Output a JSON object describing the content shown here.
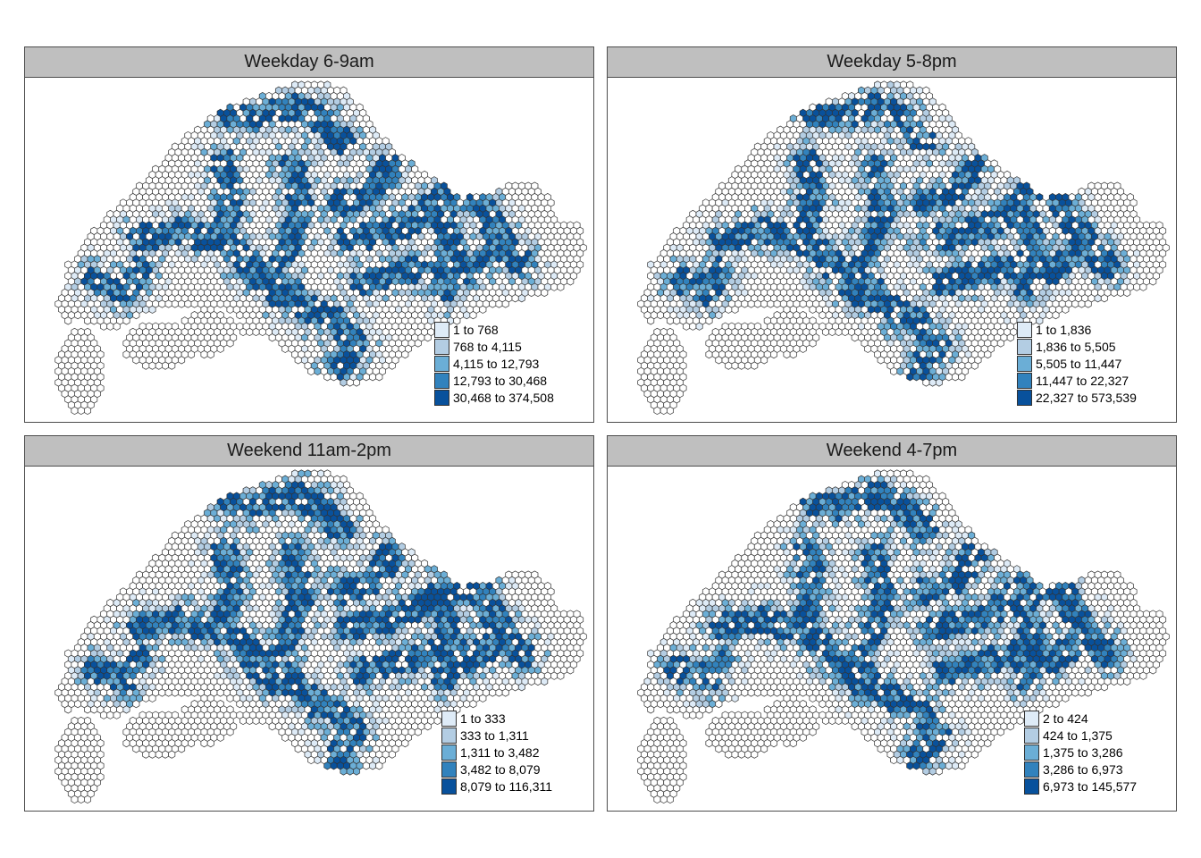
{
  "palette": [
    "#deebf7",
    "#b3cde3",
    "#6baed6",
    "#3182bd",
    "#08519c"
  ],
  "empty_fill": "#ffffff",
  "hex_stroke": "#333333",
  "panels": [
    {
      "title": "Weekday 6-9am",
      "legend": [
        "1 to 768",
        "768 to 4,115",
        "4,115 to 12,793",
        "12,793 to 30,468",
        "30,468 to 374,508"
      ]
    },
    {
      "title": "Weekday 5-8pm",
      "legend": [
        "1 to 1,836",
        "1,836 to 5,505",
        "5,505 to 11,447",
        "11,447 to 22,327",
        "22,327 to 573,539"
      ]
    },
    {
      "title": "Weekend 11am-2pm",
      "legend": [
        "1 to 333",
        "333 to 1,311",
        "1,311 to 3,482",
        "3,482 to 8,079",
        "8,079 to 116,311"
      ]
    },
    {
      "title": "Weekend 4-7pm",
      "legend": [
        "2 to 424",
        "424 to 1,375",
        "1,375 to 3,286",
        "3,286 to 6,973",
        "6,973 to 145,577"
      ]
    }
  ]
}
